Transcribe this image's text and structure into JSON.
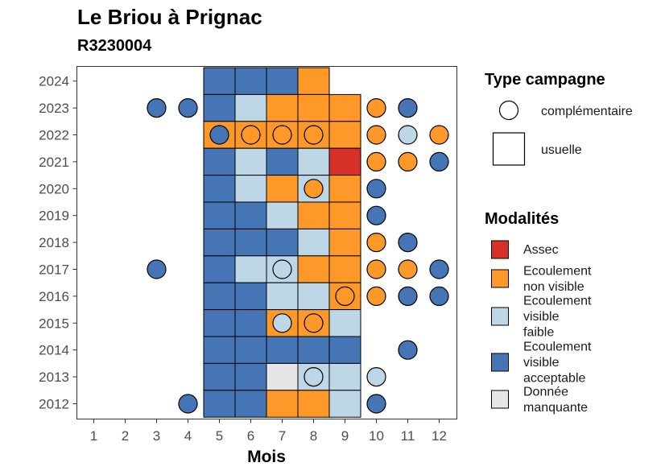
{
  "title": "Le Briou à Prignac",
  "subtitle": "R3230004",
  "colors": {
    "Assec": "#d73027",
    "Ecoulement non visible": "#fe9929",
    "Ecoulement visible faible": "#bdd7e7",
    "Ecoulement visible acceptable": "#4575b4",
    "Donnée manquante": "#e6e6e6"
  },
  "chart_data": {
    "type": "heatmap",
    "xlabel": "Mois",
    "x_ticks": [
      1,
      2,
      3,
      4,
      5,
      6,
      7,
      8,
      9,
      10,
      11,
      12
    ],
    "y_ticks": [
      2012,
      2013,
      2014,
      2015,
      2016,
      2017,
      2018,
      2019,
      2020,
      2021,
      2022,
      2023,
      2024
    ],
    "xlim": [
      0.5,
      12.5
    ],
    "ylim": [
      2011.5,
      2024.5
    ],
    "grid": false,
    "legend_position": "right",
    "legends": {
      "campaign": {
        "title": "Type campagne",
        "items": [
          {
            "key": "complementaire",
            "label": "complémentaire",
            "shape": "circle"
          },
          {
            "key": "usuelle",
            "label": "usuelle",
            "shape": "square"
          }
        ]
      },
      "modalites": {
        "title": "Modalités",
        "items": [
          {
            "key": "Assec",
            "label_lines": [
              "Assec"
            ]
          },
          {
            "key": "Ecoulement non visible",
            "label_lines": [
              "Ecoulement",
              "non visible"
            ]
          },
          {
            "key": "Ecoulement visible faible",
            "label_lines": [
              "Ecoulement",
              "visible",
              "faible"
            ]
          },
          {
            "key": "Ecoulement visible acceptable",
            "label_lines": [
              "Ecoulement",
              "visible",
              "acceptable"
            ]
          },
          {
            "key": "Donnée manquante",
            "label_lines": [
              "Donnée",
              "manquante"
            ]
          }
        ]
      }
    },
    "usuelle": [
      {
        "year": 2024,
        "month": 5,
        "value": "Ecoulement visible acceptable"
      },
      {
        "year": 2024,
        "month": 6,
        "value": "Ecoulement visible acceptable"
      },
      {
        "year": 2024,
        "month": 7,
        "value": "Ecoulement visible acceptable"
      },
      {
        "year": 2024,
        "month": 8,
        "value": "Ecoulement non visible"
      },
      {
        "year": 2023,
        "month": 5,
        "value": "Ecoulement visible acceptable"
      },
      {
        "year": 2023,
        "month": 6,
        "value": "Ecoulement visible faible"
      },
      {
        "year": 2023,
        "month": 7,
        "value": "Ecoulement non visible"
      },
      {
        "year": 2023,
        "month": 8,
        "value": "Ecoulement non visible"
      },
      {
        "year": 2023,
        "month": 9,
        "value": "Ecoulement non visible"
      },
      {
        "year": 2022,
        "month": 5,
        "value": "Ecoulement non visible"
      },
      {
        "year": 2022,
        "month": 6,
        "value": "Ecoulement non visible"
      },
      {
        "year": 2022,
        "month": 7,
        "value": "Ecoulement non visible"
      },
      {
        "year": 2022,
        "month": 8,
        "value": "Ecoulement non visible"
      },
      {
        "year": 2022,
        "month": 9,
        "value": "Ecoulement non visible"
      },
      {
        "year": 2021,
        "month": 5,
        "value": "Ecoulement visible acceptable"
      },
      {
        "year": 2021,
        "month": 6,
        "value": "Ecoulement visible faible"
      },
      {
        "year": 2021,
        "month": 7,
        "value": "Ecoulement visible acceptable"
      },
      {
        "year": 2021,
        "month": 8,
        "value": "Ecoulement visible faible"
      },
      {
        "year": 2021,
        "month": 9,
        "value": "Assec"
      },
      {
        "year": 2020,
        "month": 5,
        "value": "Ecoulement visible acceptable"
      },
      {
        "year": 2020,
        "month": 6,
        "value": "Ecoulement visible faible"
      },
      {
        "year": 2020,
        "month": 7,
        "value": "Ecoulement non visible"
      },
      {
        "year": 2020,
        "month": 8,
        "value": "Ecoulement visible faible"
      },
      {
        "year": 2020,
        "month": 9,
        "value": "Ecoulement non visible"
      },
      {
        "year": 2019,
        "month": 5,
        "value": "Ecoulement visible acceptable"
      },
      {
        "year": 2019,
        "month": 6,
        "value": "Ecoulement visible acceptable"
      },
      {
        "year": 2019,
        "month": 7,
        "value": "Ecoulement visible faible"
      },
      {
        "year": 2019,
        "month": 8,
        "value": "Ecoulement non visible"
      },
      {
        "year": 2019,
        "month": 9,
        "value": "Ecoulement non visible"
      },
      {
        "year": 2018,
        "month": 5,
        "value": "Ecoulement visible acceptable"
      },
      {
        "year": 2018,
        "month": 6,
        "value": "Ecoulement visible acceptable"
      },
      {
        "year": 2018,
        "month": 7,
        "value": "Ecoulement visible acceptable"
      },
      {
        "year": 2018,
        "month": 8,
        "value": "Ecoulement visible faible"
      },
      {
        "year": 2018,
        "month": 9,
        "value": "Ecoulement non visible"
      },
      {
        "year": 2017,
        "month": 5,
        "value": "Ecoulement visible acceptable"
      },
      {
        "year": 2017,
        "month": 6,
        "value": "Ecoulement visible faible"
      },
      {
        "year": 2017,
        "month": 7,
        "value": "Ecoulement visible faible"
      },
      {
        "year": 2017,
        "month": 8,
        "value": "Ecoulement non visible"
      },
      {
        "year": 2017,
        "month": 9,
        "value": "Ecoulement non visible"
      },
      {
        "year": 2016,
        "month": 5,
        "value": "Ecoulement visible acceptable"
      },
      {
        "year": 2016,
        "month": 6,
        "value": "Ecoulement visible acceptable"
      },
      {
        "year": 2016,
        "month": 7,
        "value": "Ecoulement visible faible"
      },
      {
        "year": 2016,
        "month": 8,
        "value": "Ecoulement visible faible"
      },
      {
        "year": 2016,
        "month": 9,
        "value": "Ecoulement non visible"
      },
      {
        "year": 2015,
        "month": 5,
        "value": "Ecoulement visible acceptable"
      },
      {
        "year": 2015,
        "month": 6,
        "value": "Ecoulement visible acceptable"
      },
      {
        "year": 2015,
        "month": 7,
        "value": "Ecoulement non visible"
      },
      {
        "year": 2015,
        "month": 8,
        "value": "Ecoulement non visible"
      },
      {
        "year": 2015,
        "month": 9,
        "value": "Ecoulement visible faible"
      },
      {
        "year": 2014,
        "month": 5,
        "value": "Ecoulement visible acceptable"
      },
      {
        "year": 2014,
        "month": 6,
        "value": "Ecoulement visible acceptable"
      },
      {
        "year": 2014,
        "month": 7,
        "value": "Ecoulement visible acceptable"
      },
      {
        "year": 2014,
        "month": 8,
        "value": "Ecoulement visible acceptable"
      },
      {
        "year": 2014,
        "month": 9,
        "value": "Ecoulement visible acceptable"
      },
      {
        "year": 2013,
        "month": 5,
        "value": "Ecoulement visible acceptable"
      },
      {
        "year": 2013,
        "month": 6,
        "value": "Ecoulement visible acceptable"
      },
      {
        "year": 2013,
        "month": 7,
        "value": "Donnée manquante"
      },
      {
        "year": 2013,
        "month": 8,
        "value": "Ecoulement visible faible"
      },
      {
        "year": 2013,
        "month": 9,
        "value": "Ecoulement visible faible"
      },
      {
        "year": 2012,
        "month": 5,
        "value": "Ecoulement visible acceptable"
      },
      {
        "year": 2012,
        "month": 6,
        "value": "Ecoulement visible acceptable"
      },
      {
        "year": 2012,
        "month": 7,
        "value": "Ecoulement non visible"
      },
      {
        "year": 2012,
        "month": 8,
        "value": "Ecoulement non visible"
      },
      {
        "year": 2012,
        "month": 9,
        "value": "Ecoulement visible faible"
      }
    ],
    "complementaire": [
      {
        "year": 2023,
        "month": 3,
        "value": "Ecoulement visible acceptable"
      },
      {
        "year": 2023,
        "month": 4,
        "value": "Ecoulement visible acceptable"
      },
      {
        "year": 2023,
        "month": 10,
        "value": "Ecoulement non visible"
      },
      {
        "year": 2023,
        "month": 11,
        "value": "Ecoulement visible acceptable"
      },
      {
        "year": 2022,
        "month": 5,
        "value": "Ecoulement visible acceptable"
      },
      {
        "year": 2022,
        "month": 6,
        "value": "Ecoulement non visible"
      },
      {
        "year": 2022,
        "month": 7,
        "value": "Ecoulement non visible"
      },
      {
        "year": 2022,
        "month": 8,
        "value": "Ecoulement non visible"
      },
      {
        "year": 2022,
        "month": 10,
        "value": "Ecoulement non visible"
      },
      {
        "year": 2022,
        "month": 11,
        "value": "Ecoulement visible faible"
      },
      {
        "year": 2022,
        "month": 12,
        "value": "Ecoulement non visible"
      },
      {
        "year": 2021,
        "month": 10,
        "value": "Ecoulement non visible"
      },
      {
        "year": 2021,
        "month": 11,
        "value": "Ecoulement non visible"
      },
      {
        "year": 2021,
        "month": 12,
        "value": "Ecoulement visible acceptable"
      },
      {
        "year": 2020,
        "month": 8,
        "value": "Ecoulement non visible"
      },
      {
        "year": 2020,
        "month": 10,
        "value": "Ecoulement visible acceptable"
      },
      {
        "year": 2019,
        "month": 10,
        "value": "Ecoulement visible acceptable"
      },
      {
        "year": 2018,
        "month": 10,
        "value": "Ecoulement non visible"
      },
      {
        "year": 2018,
        "month": 11,
        "value": "Ecoulement visible acceptable"
      },
      {
        "year": 2017,
        "month": 3,
        "value": "Ecoulement visible acceptable"
      },
      {
        "year": 2017,
        "month": 7,
        "value": "Ecoulement visible faible"
      },
      {
        "year": 2017,
        "month": 10,
        "value": "Ecoulement non visible"
      },
      {
        "year": 2017,
        "month": 11,
        "value": "Ecoulement non visible"
      },
      {
        "year": 2017,
        "month": 12,
        "value": "Ecoulement visible acceptable"
      },
      {
        "year": 2016,
        "month": 9,
        "value": "Ecoulement non visible"
      },
      {
        "year": 2016,
        "month": 10,
        "value": "Ecoulement non visible"
      },
      {
        "year": 2016,
        "month": 11,
        "value": "Ecoulement visible acceptable"
      },
      {
        "year": 2016,
        "month": 12,
        "value": "Ecoulement visible acceptable"
      },
      {
        "year": 2015,
        "month": 7,
        "value": "Ecoulement visible faible"
      },
      {
        "year": 2015,
        "month": 8,
        "value": "Ecoulement non visible"
      },
      {
        "year": 2014,
        "month": 11,
        "value": "Ecoulement visible acceptable"
      },
      {
        "year": 2013,
        "month": 8,
        "value": "Ecoulement visible faible"
      },
      {
        "year": 2013,
        "month": 10,
        "value": "Ecoulement visible faible"
      },
      {
        "year": 2012,
        "month": 4,
        "value": "Ecoulement visible acceptable"
      },
      {
        "year": 2012,
        "month": 10,
        "value": "Ecoulement visible acceptable"
      }
    ]
  }
}
